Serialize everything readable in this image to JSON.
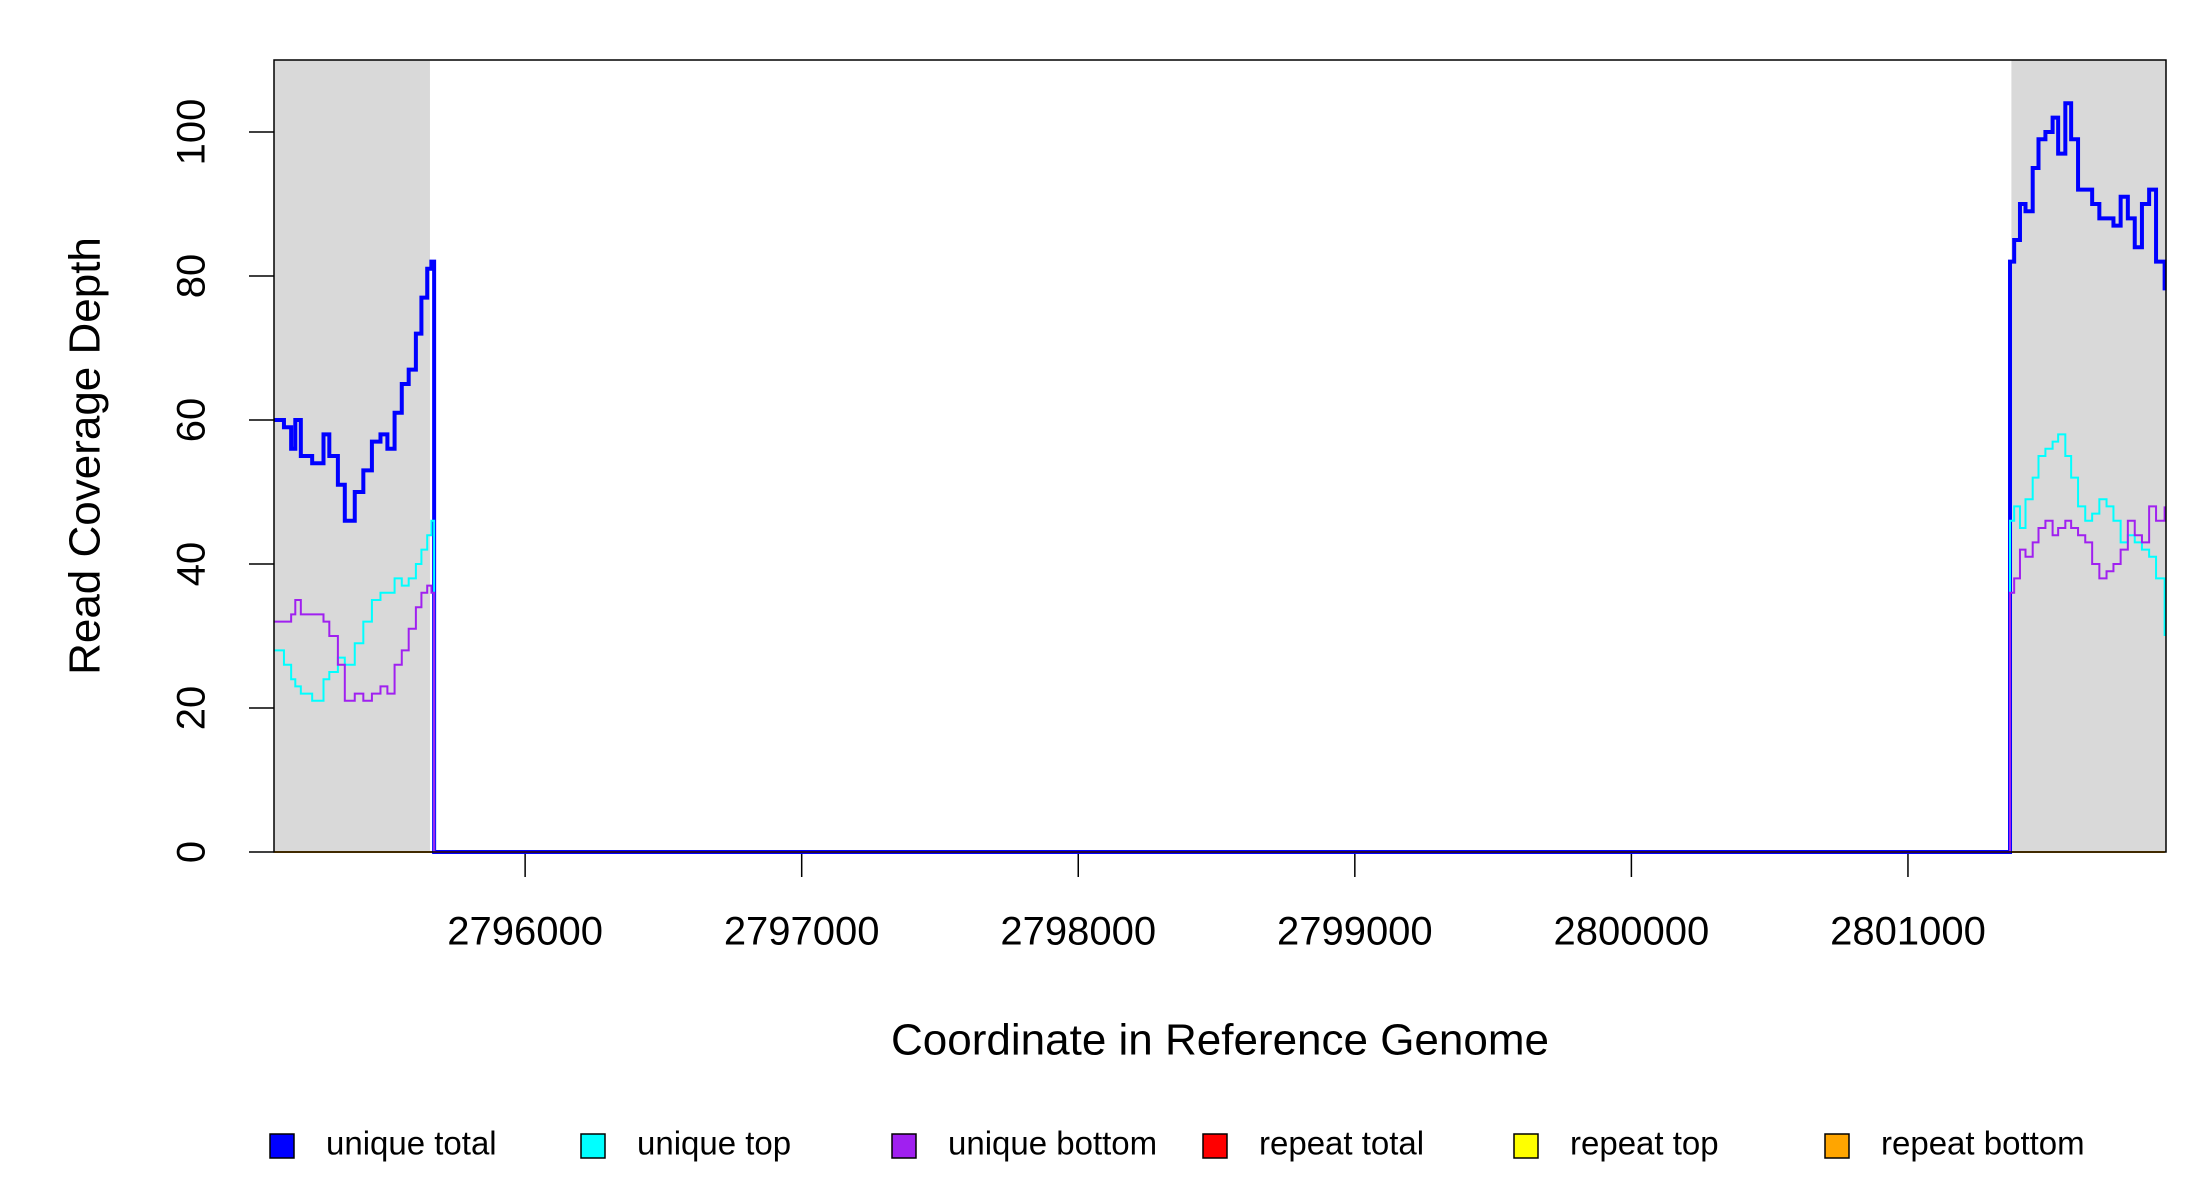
{
  "chart_data": {
    "type": "line",
    "step": true,
    "xlabel": "Coordinate in Reference Genome",
    "ylabel": "Read Coverage Depth",
    "xlim": [
      2795092,
      2801933
    ],
    "ylim": [
      0,
      110
    ],
    "xticks": [
      2796000,
      2797000,
      2798000,
      2799000,
      2800000,
      2801000
    ],
    "yticks": [
      0,
      20,
      40,
      60,
      80,
      100
    ],
    "shaded_ranges": [
      [
        2795092,
        2795656
      ],
      [
        2801374,
        2801933
      ]
    ],
    "shade_color": "#d9d9d9",
    "x": [
      2795092,
      2795128,
      2795154,
      2795169,
      2795189,
      2795230,
      2795271,
      2795292,
      2795323,
      2795348,
      2795384,
      2795415,
      2795446,
      2795477,
      2795502,
      2795528,
      2795554,
      2795579,
      2795605,
      2795625,
      2795646,
      2795661,
      2795671,
      2801360,
      2801369,
      2801384,
      2801405,
      2801425,
      2801451,
      2801472,
      2801497,
      2801523,
      2801543,
      2801569,
      2801590,
      2801615,
      2801641,
      2801666,
      2801692,
      2801718,
      2801743,
      2801769,
      2801795,
      2801820,
      2801846,
      2801872,
      2801897,
      2801928
    ],
    "series": [
      {
        "name": "repeat total",
        "color": "#ff0000",
        "values": [
          0,
          0,
          0,
          0,
          0,
          0,
          0,
          0,
          0,
          0,
          0,
          0,
          0,
          0,
          0,
          0,
          0,
          0,
          0,
          0,
          0,
          0,
          0,
          0,
          0,
          0,
          0,
          0,
          0,
          0,
          0,
          0,
          0,
          0,
          0,
          0,
          0,
          0,
          0,
          0,
          0,
          0,
          0,
          0,
          0,
          0,
          0,
          0
        ]
      },
      {
        "name": "repeat top",
        "color": "#ffff00",
        "values": [
          0,
          0,
          0,
          0,
          0,
          0,
          0,
          0,
          0,
          0,
          0,
          0,
          0,
          0,
          0,
          0,
          0,
          0,
          0,
          0,
          0,
          0,
          0,
          0,
          0,
          0,
          0,
          0,
          0,
          0,
          0,
          0,
          0,
          0,
          0,
          0,
          0,
          0,
          0,
          0,
          0,
          0,
          0,
          0,
          0,
          0,
          0,
          0
        ]
      },
      {
        "name": "repeat bottom",
        "color": "#ffa500",
        "values": [
          0,
          0,
          0,
          0,
          0,
          0,
          0,
          0,
          0,
          0,
          0,
          0,
          0,
          0,
          0,
          0,
          0,
          0,
          0,
          0,
          0,
          0,
          0,
          0,
          0,
          0,
          0,
          0,
          0,
          0,
          0,
          0,
          0,
          0,
          0,
          0,
          0,
          0,
          0,
          0,
          0,
          0,
          0,
          0,
          0,
          0,
          0,
          0
        ]
      },
      {
        "name": "unique total",
        "color": "#0000ff",
        "values": [
          60,
          59,
          56,
          60,
          55,
          54,
          58,
          55,
          51,
          46,
          50,
          53,
          57,
          58,
          56,
          61,
          65,
          67,
          72,
          77,
          81,
          82,
          0,
          0,
          82,
          85,
          90,
          89,
          95,
          99,
          100,
          102,
          97,
          104,
          99,
          92,
          92,
          90,
          88,
          88,
          87,
          91,
          88,
          84,
          90,
          92,
          82,
          78
        ]
      },
      {
        "name": "unique top",
        "color": "#00ffff",
        "values": [
          28,
          26,
          24,
          23,
          22,
          21,
          24,
          25,
          27,
          26,
          29,
          32,
          35,
          36,
          36,
          38,
          37,
          38,
          40,
          42,
          44,
          46,
          0,
          0,
          46,
          48,
          45,
          49,
          52,
          55,
          56,
          57,
          58,
          55,
          52,
          48,
          46,
          47,
          49,
          48,
          46,
          43,
          44,
          43,
          42,
          41,
          38,
          30
        ]
      },
      {
        "name": "unique bottom",
        "color": "#a020f0",
        "values": [
          32,
          32,
          33,
          35,
          33,
          33,
          32,
          30,
          26,
          21,
          22,
          21,
          22,
          23,
          22,
          26,
          28,
          31,
          34,
          36,
          37,
          36,
          0,
          0,
          36,
          38,
          42,
          41,
          43,
          45,
          46,
          44,
          45,
          46,
          45,
          44,
          43,
          40,
          38,
          39,
          40,
          42,
          46,
          44,
          43,
          48,
          46,
          48
        ]
      }
    ],
    "legend_order": [
      3,
      4,
      5,
      0,
      1,
      2
    ],
    "legend": "bottom"
  }
}
